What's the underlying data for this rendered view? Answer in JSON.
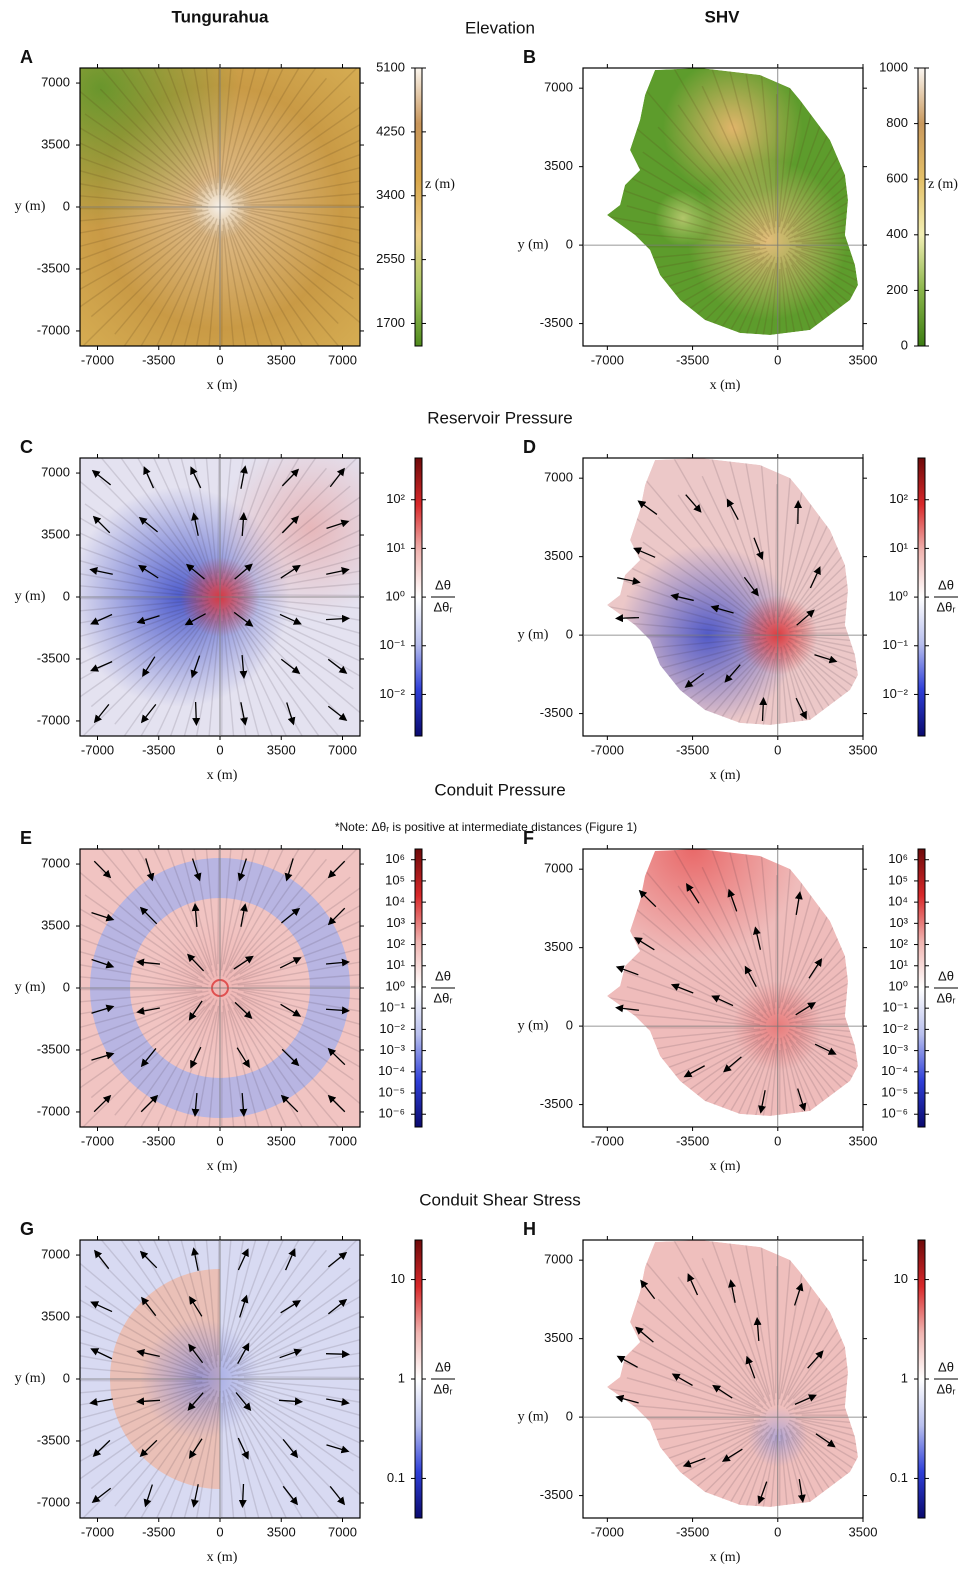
{
  "column_titles": [
    "Tungurahua",
    "SHV"
  ],
  "axis_labels": {
    "x": "x (m)",
    "y": "y (m)"
  },
  "rows": [
    {
      "title": "Elevation",
      "panels": [
        {
          "label": "A",
          "xlim": [
            -8000,
            8000
          ],
          "ylim": [
            -7850,
            7850
          ],
          "xticks": [
            -7000,
            -3500,
            0,
            3500,
            7000
          ],
          "yticks": [
            -7000,
            -3500,
            0,
            3500,
            7000
          ],
          "colorbar": {
            "scale": "linear",
            "lim": [
              1400,
              5100
            ],
            "ticks": [
              1700,
              2550,
              3400,
              4250,
              5100
            ],
            "label": "z (m)",
            "colors": [
              "#4f8a1c",
              "#a9c964",
              "#efd08a",
              "#d8a64a",
              "#c8955a",
              "#fbf6ee"
            ]
          }
        },
        {
          "label": "B",
          "xlim": [
            -8000,
            3500
          ],
          "ylim": [
            -4500,
            7900
          ],
          "xticks": [
            -7000,
            -3500,
            0,
            3500
          ],
          "yticks": [
            -3500,
            0,
            3500,
            7000
          ],
          "colorbar": {
            "scale": "linear",
            "lim": [
              0,
              1000
            ],
            "ticks": [
              0,
              200,
              400,
              600,
              800,
              1000
            ],
            "label": "z (m)",
            "colors": [
              "#3c7d12",
              "#8ab54a",
              "#f2efb4",
              "#e4c068",
              "#c9995d",
              "#fbf7f2"
            ]
          }
        }
      ]
    },
    {
      "title": "Reservoir Pressure",
      "panels": [
        {
          "label": "C",
          "xlim": [
            -8000,
            8000
          ],
          "ylim": [
            -7850,
            7850
          ],
          "xticks": [
            -7000,
            -3500,
            0,
            3500,
            7000
          ],
          "yticks": [
            -7000,
            -3500,
            0,
            3500,
            7000
          ],
          "colorbar": {
            "scale": "log",
            "lim": [
              0.0014,
              720
            ],
            "ticks": [
              {
                "value": 0.01,
                "label": "10⁻²"
              },
              {
                "value": 0.1,
                "label": "10⁻¹"
              },
              {
                "value": 1,
                "label": "10⁰"
              },
              {
                "value": 10,
                "label": "10¹"
              },
              {
                "value": 100,
                "label": "10²"
              }
            ],
            "label": {
              "numerator": "Δθ",
              "denominator": "Δθᵣ"
            },
            "colors": [
              "#0a0a6e",
              "#2f3fd8",
              "#b9c0ee",
              "#ffffff",
              "#f0b4b0",
              "#d8282a",
              "#6e0a0a"
            ]
          }
        },
        {
          "label": "D",
          "xlim": [
            -8000,
            3500
          ],
          "ylim": [
            -4500,
            7900
          ],
          "xticks": [
            -7000,
            -3500,
            0,
            3500
          ],
          "yticks": [
            -3500,
            0,
            3500,
            7000
          ],
          "colorbar": {
            "scale": "log",
            "lim": [
              0.0014,
              720
            ],
            "ticks": [
              {
                "value": 0.01,
                "label": "10⁻²"
              },
              {
                "value": 0.1,
                "label": "10⁻¹"
              },
              {
                "value": 1,
                "label": "10⁰"
              },
              {
                "value": 10,
                "label": "10¹"
              },
              {
                "value": 100,
                "label": "10²"
              }
            ],
            "label": {
              "numerator": "Δθ",
              "denominator": "Δθᵣ"
            },
            "colors": [
              "#0a0a6e",
              "#2f3fd8",
              "#b9c0ee",
              "#ffffff",
              "#f0b4b0",
              "#d8282a",
              "#6e0a0a"
            ]
          }
        }
      ]
    },
    {
      "title": "Conduit Pressure",
      "note": "*Note: Δθᵣ is positive at intermediate distances (Figure 1)",
      "panels": [
        {
          "label": "E",
          "xlim": [
            -8000,
            8000
          ],
          "ylim": [
            -7850,
            7850
          ],
          "xticks": [
            -7000,
            -3500,
            0,
            3500,
            7000
          ],
          "yticks": [
            -7000,
            -3500,
            0,
            3500,
            7000
          ],
          "colorbar": {
            "scale": "log",
            "lim": [
              2.5e-07,
              3200000.0
            ],
            "ticks": [
              {
                "value": 1e-06,
                "label": "10⁻⁶"
              },
              {
                "value": 1e-05,
                "label": "10⁻⁵"
              },
              {
                "value": 0.0001,
                "label": "10⁻⁴"
              },
              {
                "value": 0.001,
                "label": "10⁻³"
              },
              {
                "value": 0.01,
                "label": "10⁻²"
              },
              {
                "value": 0.1,
                "label": "10⁻¹"
              },
              {
                "value": 1,
                "label": "10⁰"
              },
              {
                "value": 10,
                "label": "10¹"
              },
              {
                "value": 100,
                "label": "10²"
              },
              {
                "value": 1000,
                "label": "10³"
              },
              {
                "value": 10000,
                "label": "10⁴"
              },
              {
                "value": 100000,
                "label": "10⁵"
              },
              {
                "value": 1000000,
                "label": "10⁶"
              }
            ],
            "label": {
              "numerator": "Δθ",
              "denominator": "Δθᵣ"
            },
            "colors": [
              "#0a0a6e",
              "#2f3fd8",
              "#b9c0ee",
              "#ffffff",
              "#f0b4b0",
              "#d8282a",
              "#6e0a0a"
            ]
          }
        },
        {
          "label": "F",
          "xlim": [
            -8000,
            3500
          ],
          "ylim": [
            -4500,
            7900
          ],
          "xticks": [
            -7000,
            -3500,
            0,
            3500
          ],
          "yticks": [
            -3500,
            0,
            3500,
            7000
          ],
          "colorbar": {
            "scale": "log",
            "lim": [
              2.5e-07,
              3200000.0
            ],
            "ticks": [
              {
                "value": 1e-06,
                "label": "10⁻⁶"
              },
              {
                "value": 1e-05,
                "label": "10⁻⁵"
              },
              {
                "value": 0.0001,
                "label": "10⁻⁴"
              },
              {
                "value": 0.001,
                "label": "10⁻³"
              },
              {
                "value": 0.01,
                "label": "10⁻²"
              },
              {
                "value": 0.1,
                "label": "10⁻¹"
              },
              {
                "value": 1,
                "label": "10⁰"
              },
              {
                "value": 10,
                "label": "10¹"
              },
              {
                "value": 100,
                "label": "10²"
              },
              {
                "value": 1000,
                "label": "10³"
              },
              {
                "value": 10000,
                "label": "10⁴"
              },
              {
                "value": 100000,
                "label": "10⁵"
              },
              {
                "value": 1000000,
                "label": "10⁶"
              }
            ],
            "label": {
              "numerator": "Δθ",
              "denominator": "Δθᵣ"
            },
            "colors": [
              "#0a0a6e",
              "#2f3fd8",
              "#b9c0ee",
              "#ffffff",
              "#f0b4b0",
              "#d8282a",
              "#6e0a0a"
            ]
          }
        }
      ]
    },
    {
      "title": "Conduit Shear Stress",
      "panels": [
        {
          "label": "G",
          "xlim": [
            -8000,
            8000
          ],
          "ylim": [
            -7850,
            7850
          ],
          "xticks": [
            -7000,
            -3500,
            0,
            3500,
            7000
          ],
          "yticks": [
            -7000,
            -3500,
            0,
            3500,
            7000
          ],
          "colorbar": {
            "scale": "log",
            "lim": [
              0.04,
              25
            ],
            "ticks": [
              0.1,
              1,
              10
            ],
            "label": {
              "numerator": "Δθ",
              "denominator": "Δθᵣ"
            },
            "colors": [
              "#0a0a6e",
              "#2f3fd8",
              "#b9c0ee",
              "#ffffff",
              "#f0b4b0",
              "#d8282a",
              "#6e0a0a"
            ]
          }
        },
        {
          "label": "H",
          "xlim": [
            -8000,
            3500
          ],
          "ylim": [
            -4500,
            7900
          ],
          "xticks": [
            -7000,
            -3500,
            0,
            3500
          ],
          "yticks": [
            -3500,
            0,
            3500,
            7000
          ],
          "colorbar": {
            "scale": "log",
            "lim": [
              0.04,
              25
            ],
            "ticks": [
              0.1,
              1,
              10
            ],
            "label": {
              "numerator": "Δθ",
              "denominator": "Δθᵣ"
            },
            "colors": [
              "#0a0a6e",
              "#2f3fd8",
              "#b9c0ee",
              "#ffffff",
              "#f0b4b0",
              "#d8282a",
              "#6e0a0a"
            ]
          }
        }
      ]
    }
  ]
}
